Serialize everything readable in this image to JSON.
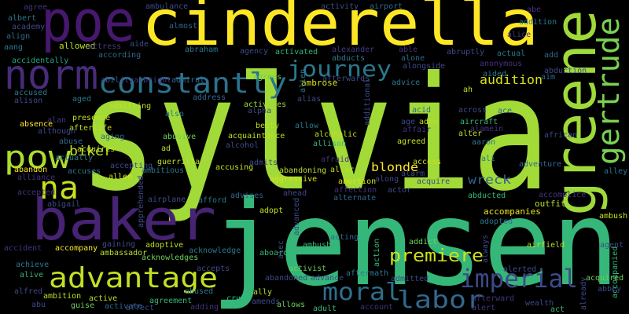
{
  "words": [
    {
      "text": "sylvia",
      "color": "#a2da37"
    },
    {
      "text": "jensen",
      "color": "#35b779"
    },
    {
      "text": "cinderella",
      "color": "#fde725"
    },
    {
      "text": "poe",
      "color": "#46186e"
    },
    {
      "text": "norm",
      "color": "#482c7a"
    },
    {
      "text": "baker",
      "color": "#472374"
    },
    {
      "text": "pow",
      "color": "#addc30"
    },
    {
      "text": "na",
      "color": "#c8e020"
    },
    {
      "text": "constantly",
      "color": "#2c728e"
    },
    {
      "text": "journey",
      "color": "#2a788e"
    },
    {
      "text": "greene",
      "color": "#9fda3a"
    },
    {
      "text": "gertrude",
      "color": "#7ad151"
    },
    {
      "text": "advantage",
      "color": "#c2df23"
    },
    {
      "text": "moral",
      "color": "#2e6e8e"
    },
    {
      "text": "labor",
      "color": "#31688e"
    },
    {
      "text": "imperial",
      "color": "#3e4989"
    },
    {
      "text": "premiere",
      "color": "#cde11d"
    },
    {
      "text": "audition",
      "color": "#d8e219"
    },
    {
      "text": "biker",
      "color": "#c0df25"
    },
    {
      "text": "blonde",
      "color": "#fde725"
    },
    {
      "text": "wreck",
      "color": "#34618d"
    },
    {
      "text": "outfit",
      "color": "#b5de2b"
    },
    {
      "text": "accompanies",
      "color": "#efe51c"
    },
    {
      "text": "agree",
      "color": "#46327e"
    },
    {
      "text": "ambulance",
      "color": "#3e4a89"
    },
    {
      "text": "activity",
      "color": "#3e4a89"
    },
    {
      "text": "airport",
      "color": "#31688e"
    },
    {
      "text": "abe",
      "color": "#46327e"
    },
    {
      "text": "albert",
      "color": "#2a788e"
    },
    {
      "text": "academy",
      "color": "#3e4a89"
    },
    {
      "text": "align",
      "color": "#31688e"
    },
    {
      "text": "aang",
      "color": "#2a788e"
    },
    {
      "text": "accidentally",
      "color": "#20a486"
    },
    {
      "text": "allowed",
      "color": "#bddf26"
    },
    {
      "text": "actress",
      "color": "#443a83"
    },
    {
      "text": "aide",
      "color": "#3e4a89"
    },
    {
      "text": "almost",
      "color": "#31688e"
    },
    {
      "text": "abraham",
      "color": "#2a788e"
    },
    {
      "text": "agency",
      "color": "#3e4a89"
    },
    {
      "text": "activated",
      "color": "#35b779"
    },
    {
      "text": "alexander",
      "color": "#443a83"
    },
    {
      "text": "abducts",
      "color": "#2a788e"
    },
    {
      "text": "able",
      "color": "#46327e"
    },
    {
      "text": "alone",
      "color": "#31688e"
    },
    {
      "text": "abruptly",
      "color": "#3e4a89"
    },
    {
      "text": "actual",
      "color": "#2a788e"
    },
    {
      "text": "addition",
      "color": "#2a788e"
    },
    {
      "text": "alice",
      "color": "#46327e"
    },
    {
      "text": "add",
      "color": "#31688e"
    },
    {
      "text": "abduction",
      "color": "#3e4a89"
    },
    {
      "text": "aim",
      "color": "#31688e"
    },
    {
      "text": "anonymous",
      "color": "#46327e"
    },
    {
      "text": "aided",
      "color": "#2a788e"
    },
    {
      "text": "ah",
      "color": "#bddf26"
    },
    {
      "text": "alongside",
      "color": "#3e4a89"
    },
    {
      "text": "advice",
      "color": "#2a788e"
    },
    {
      "text": "afterwards",
      "color": "#3e4a89"
    },
    {
      "text": "ambrose",
      "color": "#d8e219"
    },
    {
      "text": "agrees",
      "color": "#6ece58"
    },
    {
      "text": "according",
      "color": "#31688e"
    },
    {
      "text": "ability",
      "color": "#3e4a89"
    },
    {
      "text": "albright",
      "color": "#46327e"
    },
    {
      "text": "admiral",
      "color": "#31688e"
    },
    {
      "text": "accused",
      "color": "#2a788e"
    },
    {
      "text": "alison",
      "color": "#3e4a89"
    },
    {
      "text": "aged",
      "color": "#2a788e"
    },
    {
      "text": "address",
      "color": "#31688e"
    },
    {
      "text": "activates",
      "color": "#a0da39"
    },
    {
      "text": "alias",
      "color": "#3e4a89"
    },
    {
      "text": "alpha",
      "color": "#3e4a89"
    },
    {
      "text": "acid",
      "color": "#31688e"
    },
    {
      "text": "across",
      "color": "#3e4a89"
    },
    {
      "text": "ace",
      "color": "#31688e"
    },
    {
      "text": "admitting",
      "color": "#bddf26"
    },
    {
      "text": "also",
      "color": "#2a788e"
    },
    {
      "text": "presence",
      "color": "#c8e020"
    },
    {
      "text": "afterlife",
      "color": "#bddf26"
    },
    {
      "text": "alan",
      "color": "#46327e"
    },
    {
      "text": "absence",
      "color": "#fde725"
    },
    {
      "text": "although",
      "color": "#3e4a89"
    },
    {
      "text": "abuse",
      "color": "#31688e"
    },
    {
      "text": "acquires",
      "color": "#bddf26"
    },
    {
      "text": "actually",
      "color": "#2a788e"
    },
    {
      "text": "aging",
      "color": "#31688e"
    },
    {
      "text": "abusive",
      "color": "#6ece58"
    },
    {
      "text": "betty",
      "color": "#bddf26"
    },
    {
      "text": "acquaintance",
      "color": "#bddf26"
    },
    {
      "text": "alcohol",
      "color": "#3e4a89"
    },
    {
      "text": "allow",
      "color": "#2a788e"
    },
    {
      "text": "alcoholic",
      "color": "#bddf26"
    },
    {
      "text": "allison",
      "color": "#35b779"
    },
    {
      "text": "adam",
      "color": "#bddf26"
    },
    {
      "text": "age",
      "color": "#3e4a89"
    },
    {
      "text": "affair",
      "color": "#46327e"
    },
    {
      "text": "alter",
      "color": "#bddf26"
    },
    {
      "text": "aircraft",
      "color": "#35b779"
    },
    {
      "text": "alamein",
      "color": "#46327e"
    },
    {
      "text": "aaron",
      "color": "#2a788e"
    },
    {
      "text": "african",
      "color": "#3e4a89"
    },
    {
      "text": "ad",
      "color": "#bddf26"
    },
    {
      "text": "abandon",
      "color": "#fde725"
    },
    {
      "text": "alliance",
      "color": "#46327e"
    },
    {
      "text": "accuses",
      "color": "#2a788e"
    },
    {
      "text": "accepting",
      "color": "#3e4a89"
    },
    {
      "text": "ambitious",
      "color": "#2a788e"
    },
    {
      "text": "allen",
      "color": "#d8e219"
    },
    {
      "text": "guerrilla",
      "color": "#bddf26"
    },
    {
      "text": "admits",
      "color": "#3e4a89"
    },
    {
      "text": "abandoning",
      "color": "#bddf26"
    },
    {
      "text": "afraid",
      "color": "#46327e"
    },
    {
      "text": "altar",
      "color": "#bddf26"
    },
    {
      "text": "accusing",
      "color": "#c8e020"
    },
    {
      "text": "aggressive",
      "color": "#d8e219"
    },
    {
      "text": "agreed",
      "color": "#c8e020"
    },
    {
      "text": "access",
      "color": "#c8e020"
    },
    {
      "text": "alarm",
      "color": "#3e4a89"
    },
    {
      "text": "acquire",
      "color": "#3e4a89"
    },
    {
      "text": "ali",
      "color": "#2a788e"
    },
    {
      "text": "adventure",
      "color": "#31688e"
    },
    {
      "text": "alley",
      "color": "#2a788e"
    },
    {
      "text": "abortion",
      "color": "#d8e219"
    },
    {
      "text": "along",
      "color": "#3e4a89"
    },
    {
      "text": "actor",
      "color": "#3e4a89"
    },
    {
      "text": "affection",
      "color": "#46327e"
    },
    {
      "text": "alternate",
      "color": "#31688e"
    },
    {
      "text": "accepted",
      "color": "#46327e"
    },
    {
      "text": "abigail",
      "color": "#3e4a89"
    },
    {
      "text": "airplane",
      "color": "#3e4a89"
    },
    {
      "text": "afford",
      "color": "#2a788e"
    },
    {
      "text": "advises",
      "color": "#31688e"
    },
    {
      "text": "ahead",
      "color": "#3e4a89"
    },
    {
      "text": "accomplice",
      "color": "#46327e"
    },
    {
      "text": "ambush",
      "color": "#c8e020"
    },
    {
      "text": "abducted",
      "color": "#35b779"
    },
    {
      "text": "adopt",
      "color": "#c8e020"
    },
    {
      "text": "adopted",
      "color": "#2a788e"
    },
    {
      "text": "acting",
      "color": "#31688e"
    },
    {
      "text": "alive",
      "color": "#35b779"
    },
    {
      "text": "achieve",
      "color": "#2a788e"
    },
    {
      "text": "accident",
      "color": "#46327e"
    },
    {
      "text": "accompany",
      "color": "#fde725"
    },
    {
      "text": "gaining",
      "color": "#3e4a89"
    },
    {
      "text": "ambassador",
      "color": "#bddf26"
    },
    {
      "text": "adoptive",
      "color": "#bddf26"
    },
    {
      "text": "acknowledges",
      "color": "#6ece58"
    },
    {
      "text": "acknowledge",
      "color": "#2a788e"
    },
    {
      "text": "aboard",
      "color": "#35b779"
    },
    {
      "text": "ambushed",
      "color": "#35b779"
    },
    {
      "text": "addict",
      "color": "#6ece58"
    },
    {
      "text": "airfield",
      "color": "#bddf26"
    },
    {
      "text": "agent",
      "color": "#3e4a89"
    },
    {
      "text": "activist",
      "color": "#6ece58"
    },
    {
      "text": "accepts",
      "color": "#3e4a89"
    },
    {
      "text": "abandoned",
      "color": "#3e4a89"
    },
    {
      "text": "advance",
      "color": "#3e4a89"
    },
    {
      "text": "aftermath",
      "color": "#2a788e"
    },
    {
      "text": "admitted",
      "color": "#3e4a89"
    },
    {
      "text": "ago",
      "color": "#35b779"
    },
    {
      "text": "alerted",
      "color": "#3e4a89"
    },
    {
      "text": "acquired",
      "color": "#6ece58"
    },
    {
      "text": "abbey",
      "color": "#3e4a89"
    },
    {
      "text": "alfred",
      "color": "#3e4a89"
    },
    {
      "text": "ambition",
      "color": "#bddf26"
    },
    {
      "text": "active",
      "color": "#bddf26"
    },
    {
      "text": "affect",
      "color": "#3e4a89"
    },
    {
      "text": "agreement",
      "color": "#35b779"
    },
    {
      "text": "abused",
      "color": "#2a788e"
    },
    {
      "text": "adding",
      "color": "#46327e"
    },
    {
      "text": "cruel",
      "color": "#35b779"
    },
    {
      "text": "ally",
      "color": "#bddf26"
    },
    {
      "text": "amends",
      "color": "#3e4a89"
    },
    {
      "text": "allows",
      "color": "#6ece58"
    },
    {
      "text": "adult",
      "color": "#35b779"
    },
    {
      "text": "account",
      "color": "#46327e"
    },
    {
      "text": "afterward",
      "color": "#46327e"
    },
    {
      "text": "alert",
      "color": "#46327e"
    },
    {
      "text": "wealth",
      "color": "#3e4a89"
    },
    {
      "text": "act",
      "color": "#35b779"
    },
    {
      "text": "abu",
      "color": "#3e4a89"
    },
    {
      "text": "guise",
      "color": "#6ece58"
    },
    {
      "text": "activate",
      "color": "#31688e"
    },
    {
      "text": "alien",
      "color": "#2a788e"
    },
    {
      "text": "additional",
      "color": "#3e4a89"
    },
    {
      "text": "action",
      "color": "#35b779"
    },
    {
      "text": "always",
      "color": "#3e4a89"
    },
    {
      "text": "already",
      "color": "#3e4a89"
    },
    {
      "text": "advanced",
      "color": "#3e4a89"
    },
    {
      "text": "apprehended",
      "color": "#3e4a89"
    },
    {
      "text": "accompanied",
      "color": "#35b779"
    },
    {
      "text": "alec",
      "color": "#3e4a89"
    }
  ]
}
